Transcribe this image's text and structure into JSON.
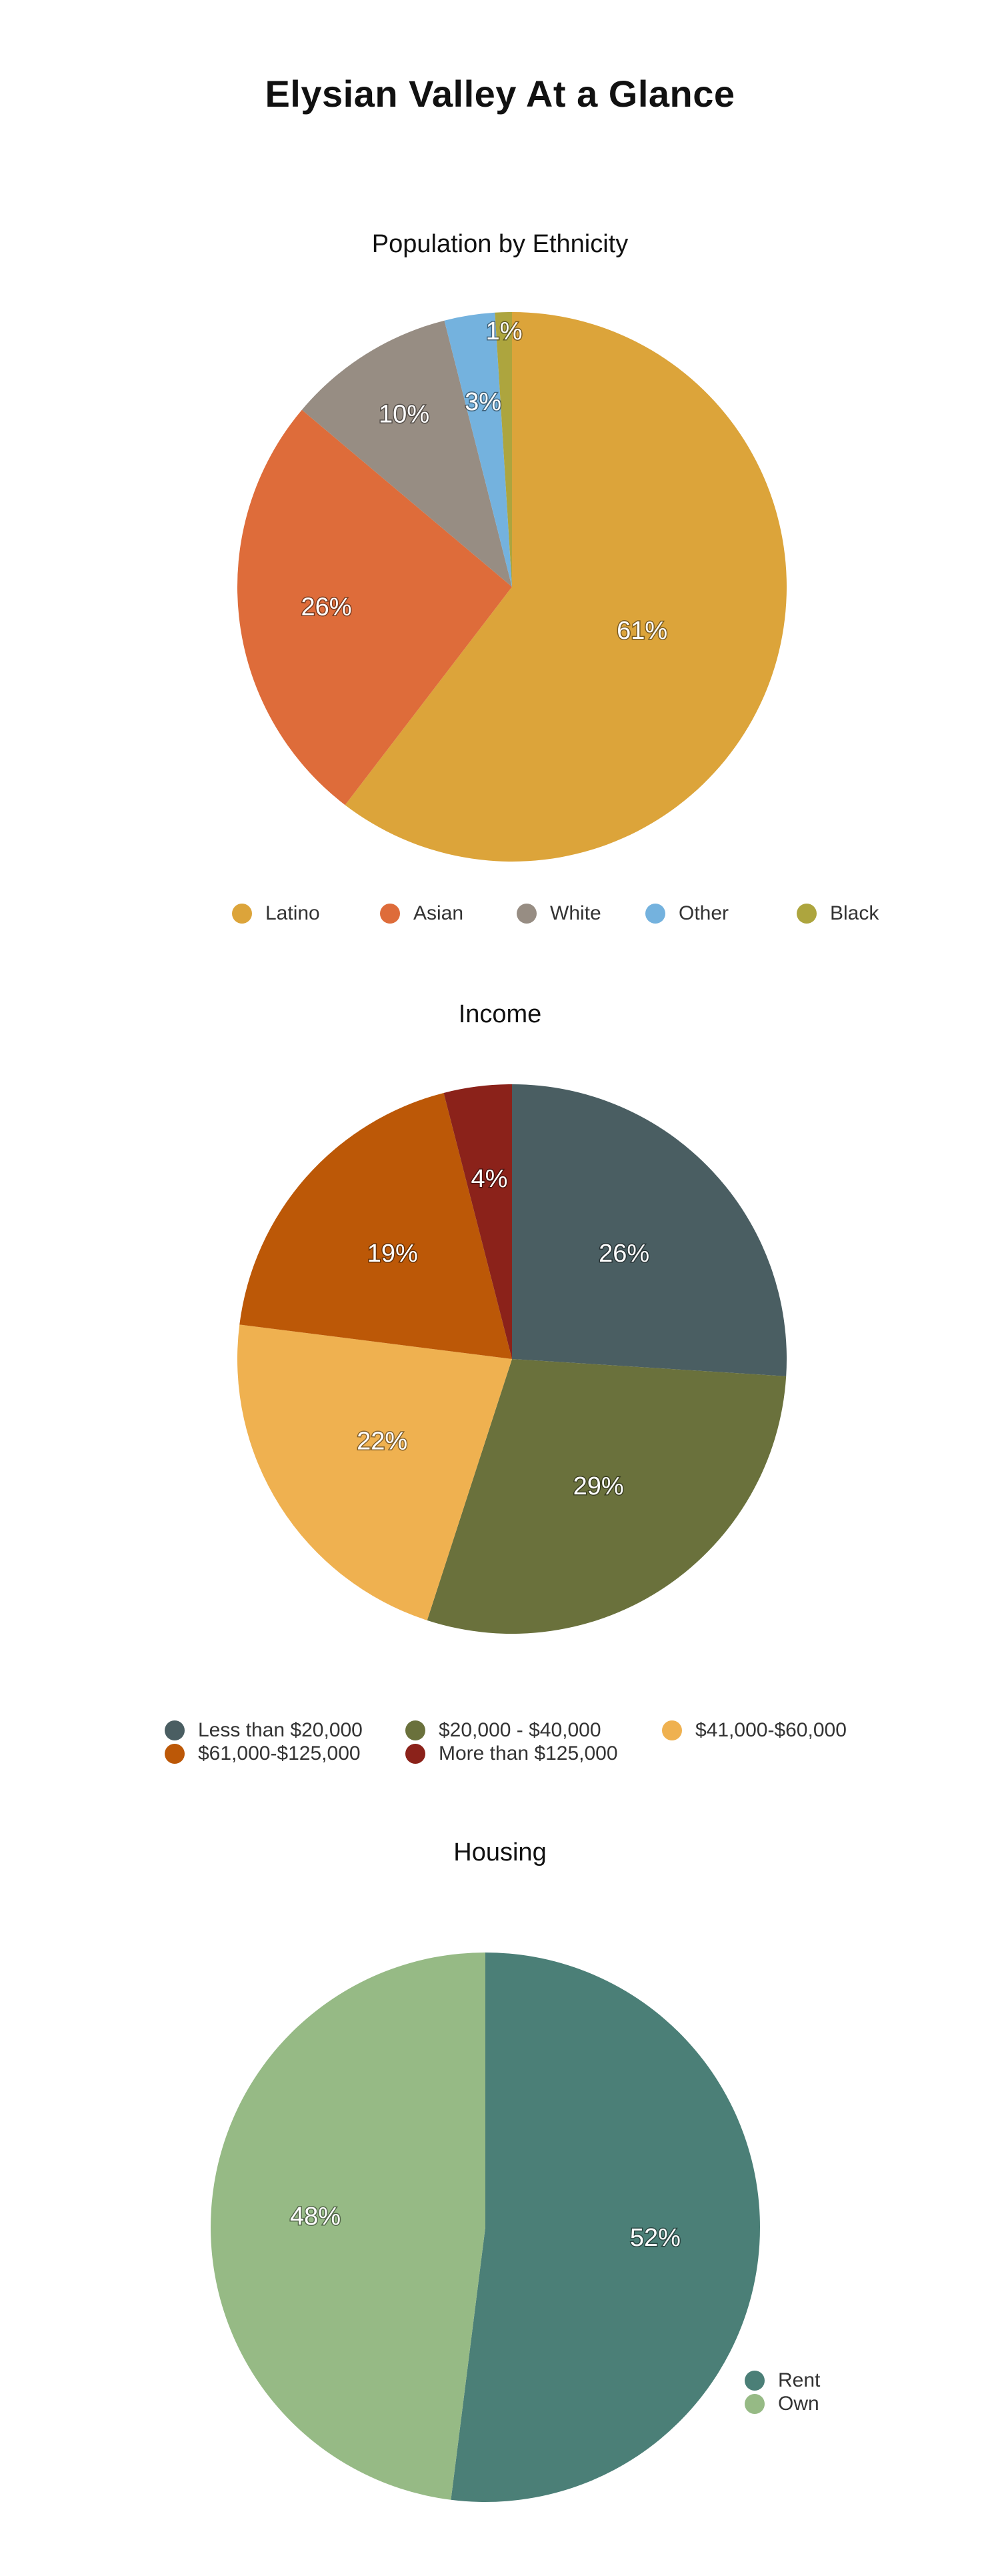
{
  "page": {
    "title": "Elysian Valley At a Glance"
  },
  "chart_data": [
    {
      "type": "pie",
      "title": "Population by Ethnicity",
      "categories": [
        "Latino",
        "Asian",
        "White",
        "Other",
        "Black"
      ],
      "values": [
        61,
        26,
        10,
        3,
        1
      ],
      "labels": [
        "61%",
        "26%",
        "10%",
        "3%",
        "1%"
      ],
      "colors": [
        "#DCA43A",
        "#DE6C3A",
        "#978D83",
        "#74B2DE",
        "#ADA53E"
      ],
      "legend_position": "bottom"
    },
    {
      "type": "pie",
      "title": "Income",
      "categories": [
        "Less than $20,000",
        "$20,000 - $40,000",
        "$41,000-$60,000",
        "$61,000-$125,000",
        "More than $125,000"
      ],
      "values": [
        26,
        29,
        22,
        19,
        4
      ],
      "labels": [
        "26%",
        "29%",
        "22%",
        "19%",
        "4%"
      ],
      "colors": [
        "#4A5E62",
        "#6A713C",
        "#EFB150",
        "#BC5807",
        "#8B221A"
      ],
      "legend_position": "bottom"
    },
    {
      "type": "pie",
      "title": "Housing",
      "categories": [
        "Rent",
        "Own"
      ],
      "values": [
        52,
        48
      ],
      "labels": [
        "52%",
        "48%"
      ],
      "colors": [
        "#4B7F77",
        "#96BA85"
      ],
      "legend_position": "bottom-right"
    }
  ]
}
